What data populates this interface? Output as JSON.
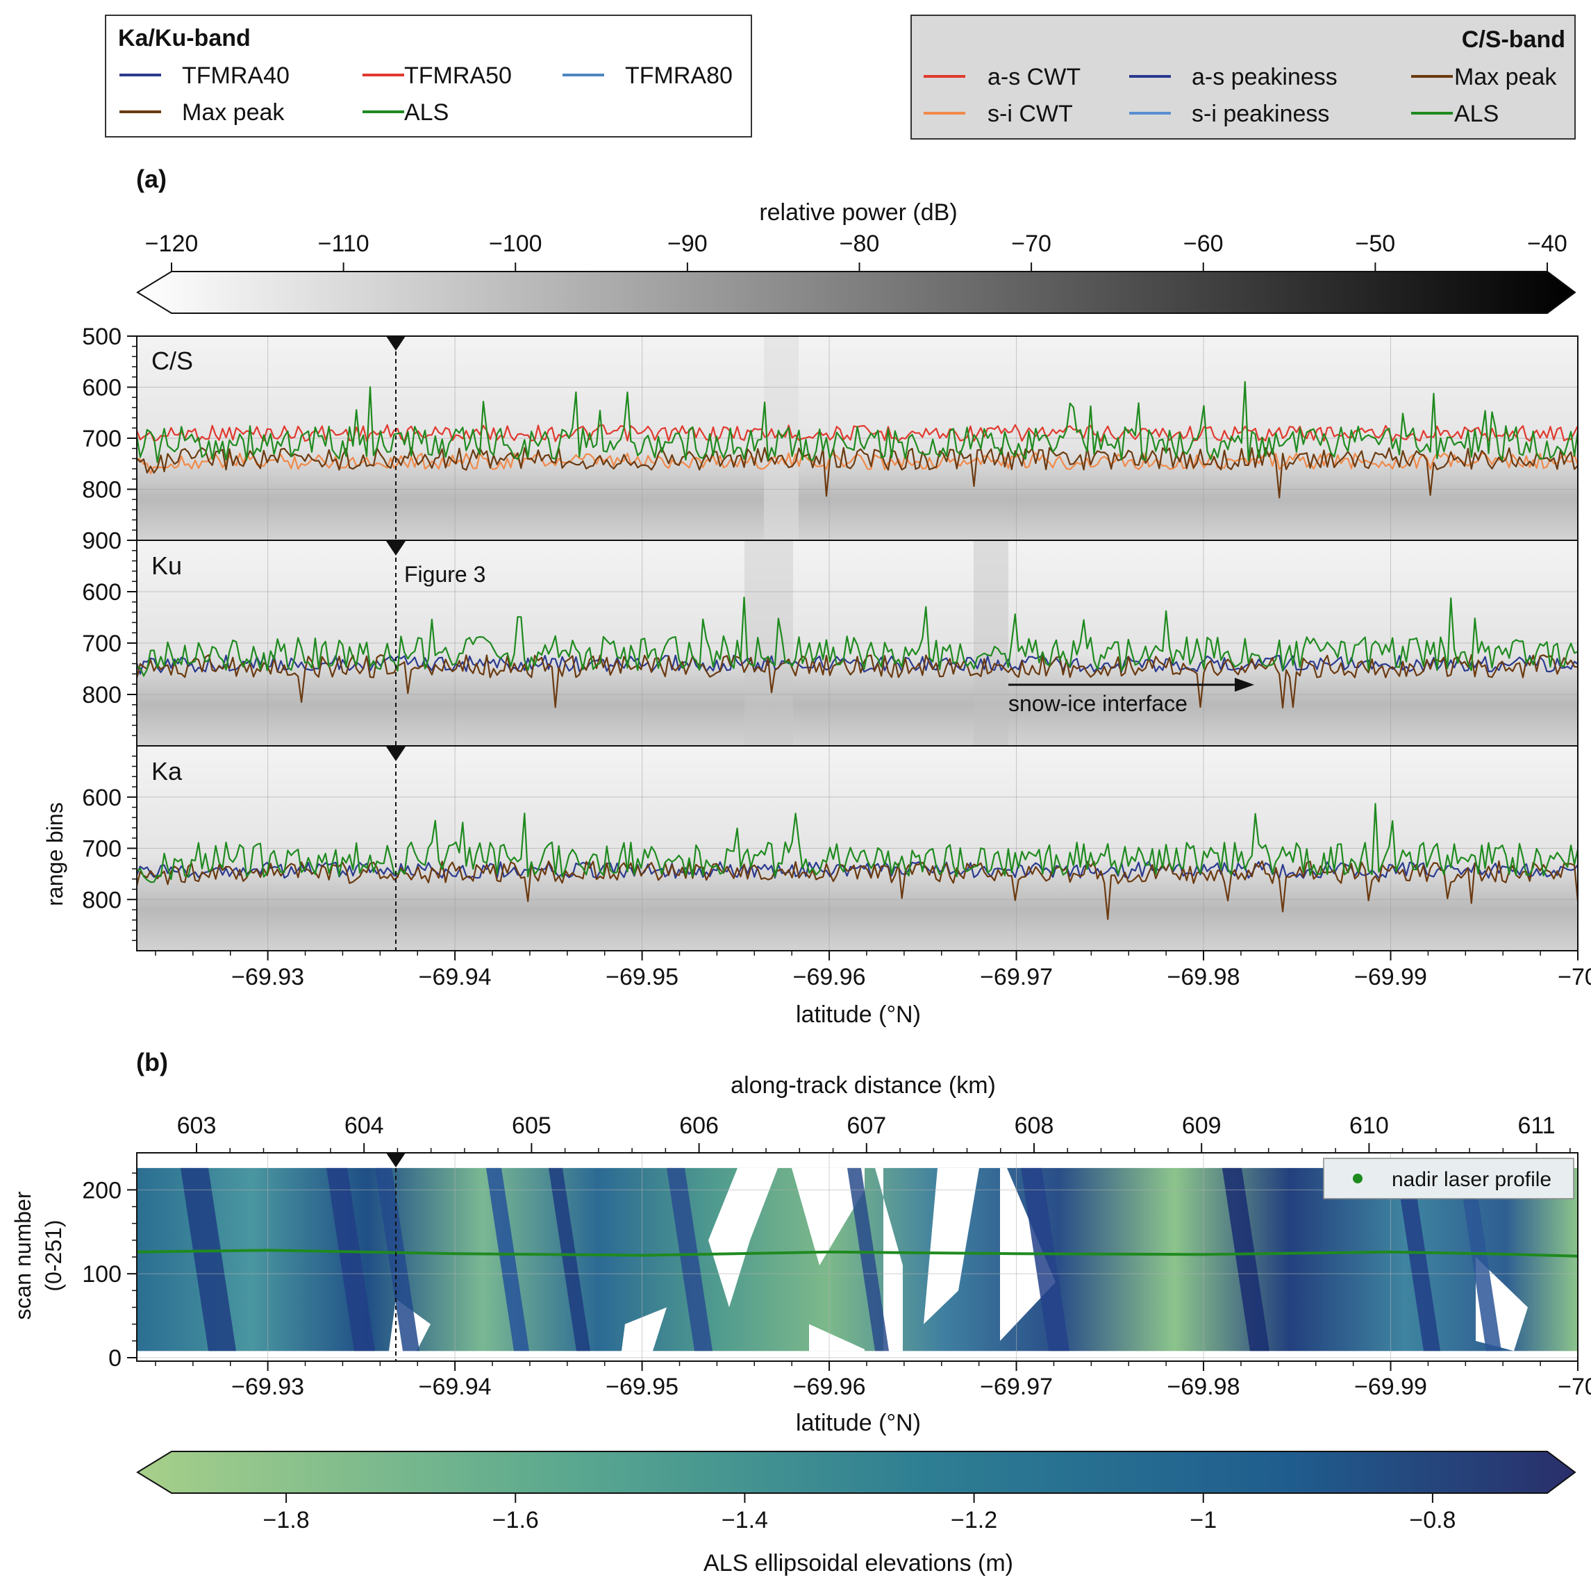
{
  "legend_kaku": {
    "title": "Ka/Ku-band",
    "items": [
      {
        "label": "TFMRA40",
        "color": "#2b3a8f"
      },
      {
        "label": "TFMRA50",
        "color": "#e03a2f"
      },
      {
        "label": "TFMRA80",
        "color": "#4f86c0"
      },
      {
        "label": "Max peak",
        "color": "#6b3a10"
      },
      {
        "label": "ALS",
        "color": "#1f8a1f"
      }
    ]
  },
  "legend_cs": {
    "title": "C/S-band",
    "items": [
      {
        "label": "a-s CWT",
        "color": "#e03a2f"
      },
      {
        "label": "a-s peakiness",
        "color": "#2b3a8f"
      },
      {
        "label": "Max peak",
        "color": "#6b3a10"
      },
      {
        "label": "s-i CWT",
        "color": "#f08a4b"
      },
      {
        "label": "s-i peakiness",
        "color": "#5a8fd0"
      },
      {
        "label": "ALS",
        "color": "#1f8a1f"
      }
    ]
  },
  "panel_a": {
    "label": "(a)",
    "colorbar": {
      "label": "relative power (dB)",
      "ticks": [
        "−120",
        "−110",
        "−100",
        "−90",
        "−80",
        "−70",
        "−60",
        "−50",
        "−40"
      ],
      "range": [
        -120,
        -40
      ],
      "colormap": [
        "#ffffff",
        "#000000"
      ]
    },
    "subplots": [
      {
        "name": "C/S",
        "ytick_labels": [
          "500",
          "600",
          "700",
          "800",
          "900"
        ],
        "ylim": [
          900,
          500
        ]
      },
      {
        "name": "Ku",
        "ytick_labels": [
          "600",
          "700",
          "800"
        ],
        "ylim": [
          900,
          500
        ]
      },
      {
        "name": "Ka",
        "ytick_labels": [
          "600",
          "700",
          "800"
        ],
        "ylim": [
          900,
          500
        ]
      }
    ],
    "ylabel": "range bins",
    "xlabel": "latitude (°N)",
    "xtick_labels": [
      "−69.93",
      "−69.94",
      "−69.95",
      "−69.96",
      "−69.97",
      "−69.98",
      "−69.99",
      "−70"
    ],
    "marker_annotation": "Figure 3",
    "interface_annotation": "snow-ice interface"
  },
  "panel_b": {
    "label": "(b)",
    "top_xlabel": "along-track distance (km)",
    "top_xtick_labels": [
      "603",
      "604",
      "605",
      "606",
      "607",
      "608",
      "609",
      "610",
      "611"
    ],
    "ylabel_line1": "scan number",
    "ylabel_line2": "(0-251)",
    "ytick_labels": [
      "0",
      "100",
      "200"
    ],
    "xlabel": "latitude (°N)",
    "xtick_labels": [
      "−69.93",
      "−69.94",
      "−69.95",
      "−69.96",
      "−69.97",
      "−69.98",
      "−69.99",
      "−70"
    ],
    "legend_label": "nadir laser profile",
    "legend_color": "#1f8a1f",
    "colorbar": {
      "label": "ALS ellipsoidal elevations (m)",
      "ticks": [
        "−1.8",
        "−1.6",
        "−1.4",
        "−1.2",
        "−1",
        "−0.8"
      ],
      "range": [
        -1.9,
        -0.7
      ],
      "colormap": [
        "#a7d08a",
        "#5aa88f",
        "#2e7e93",
        "#1f5d8e",
        "#2a2f6b"
      ]
    }
  },
  "chart_data": [
    {
      "type": "line",
      "title": "C/S",
      "xlabel": "latitude (°N)",
      "ylabel": "range bins",
      "xlim": [
        -69.923,
        -70.0
      ],
      "ylim": [
        900,
        500
      ],
      "series": [
        {
          "name": "a-s CWT",
          "x": [
            -69.925,
            -69.93,
            -69.935,
            -69.94,
            -69.945,
            -69.95,
            -69.955,
            -69.96,
            -69.965,
            -69.97,
            -69.975,
            -69.98,
            -69.985,
            -69.99,
            -69.995,
            -70.0
          ],
          "values": [
            690,
            665,
            675,
            670,
            680,
            690,
            690,
            735,
            670,
            735,
            690,
            665,
            690,
            680,
            675,
            695
          ]
        },
        {
          "name": "s-i CWT",
          "x": [
            -69.925,
            -69.93,
            -69.935,
            -69.94,
            -69.945,
            -69.95,
            -69.955,
            -69.96,
            -69.965,
            -69.97,
            -69.975,
            -69.98,
            -69.985,
            -69.99,
            -69.995,
            -70.0
          ],
          "values": [
            745,
            735,
            740,
            745,
            740,
            740,
            745,
            760,
            745,
            760,
            745,
            735,
            745,
            740,
            740,
            755
          ]
        },
        {
          "name": "Max peak",
          "x": [
            -69.925,
            -69.93,
            -69.935,
            -69.94,
            -69.945,
            -69.95,
            -69.955,
            -69.96,
            -69.965,
            -69.97,
            -69.975,
            -69.98,
            -69.985,
            -69.99,
            -69.995,
            -70.0
          ],
          "values": [
            740,
            725,
            730,
            745,
            735,
            735,
            740,
            750,
            735,
            752,
            735,
            725,
            740,
            735,
            730,
            750
          ]
        },
        {
          "name": "ALS",
          "x": [
            -69.925,
            -69.93,
            -69.935,
            -69.94,
            -69.945,
            -69.95,
            -69.955,
            -69.96,
            -69.965,
            -69.97,
            -69.975,
            -69.98,
            -69.985,
            -69.99,
            -69.995,
            -70.0
          ],
          "values": [
            710,
            680,
            690,
            700,
            705,
            710,
            715,
            750,
            700,
            750,
            710,
            690,
            710,
            705,
            700,
            715
          ]
        }
      ]
    },
    {
      "type": "line",
      "title": "Ku",
      "xlabel": "latitude (°N)",
      "ylabel": "range bins",
      "xlim": [
        -69.923,
        -70.0
      ],
      "ylim": [
        900,
        500
      ],
      "series": [
        {
          "name": "TFMRA40",
          "x": [
            -69.925,
            -69.93,
            -69.935,
            -69.94,
            -69.945,
            -69.95,
            -69.955,
            -69.96,
            -69.965,
            -69.97,
            -69.975,
            -69.98,
            -69.985,
            -69.99,
            -69.995,
            -70.0
          ],
          "values": [
            740,
            715,
            725,
            745,
            730,
            725,
            750,
            760,
            720,
            760,
            730,
            690,
            725,
            720,
            710,
            745
          ]
        },
        {
          "name": "Max peak",
          "x": [
            -69.925,
            -69.93,
            -69.935,
            -69.94,
            -69.945,
            -69.95,
            -69.955,
            -69.96,
            -69.965,
            -69.97,
            -69.975,
            -69.98,
            -69.985,
            -69.99,
            -69.995,
            -70.0
          ],
          "values": [
            745,
            720,
            730,
            750,
            735,
            730,
            755,
            762,
            725,
            762,
            735,
            695,
            730,
            725,
            715,
            750
          ]
        },
        {
          "name": "ALS",
          "x": [
            -69.925,
            -69.93,
            -69.935,
            -69.94,
            -69.945,
            -69.95,
            -69.955,
            -69.96,
            -69.965,
            -69.97,
            -69.975,
            -69.98,
            -69.985,
            -69.99,
            -69.995,
            -70.0
          ],
          "values": [
            720,
            690,
            700,
            720,
            710,
            710,
            730,
            760,
            705,
            760,
            715,
            680,
            715,
            710,
            695,
            730
          ]
        }
      ]
    },
    {
      "type": "line",
      "title": "Ka",
      "xlabel": "latitude (°N)",
      "ylabel": "range bins",
      "xlim": [
        -69.923,
        -70.0
      ],
      "ylim": [
        900,
        500
      ],
      "series": [
        {
          "name": "TFMRA40",
          "x": [
            -69.925,
            -69.93,
            -69.935,
            -69.94,
            -69.945,
            -69.95,
            -69.955,
            -69.96,
            -69.965,
            -69.97,
            -69.975,
            -69.98,
            -69.985,
            -69.99,
            -69.995,
            -70.0
          ],
          "values": [
            742,
            718,
            728,
            748,
            732,
            728,
            752,
            762,
            722,
            762,
            732,
            692,
            727,
            722,
            712,
            748
          ]
        },
        {
          "name": "Max peak",
          "x": [
            -69.925,
            -69.93,
            -69.935,
            -69.94,
            -69.945,
            -69.95,
            -69.955,
            -69.96,
            -69.965,
            -69.97,
            -69.975,
            -69.98,
            -69.985,
            -69.99,
            -69.995,
            -70.0
          ],
          "values": [
            747,
            722,
            732,
            752,
            737,
            732,
            757,
            763,
            727,
            764,
            737,
            697,
            732,
            727,
            717,
            752
          ]
        },
        {
          "name": "ALS",
          "x": [
            -69.925,
            -69.93,
            -69.935,
            -69.94,
            -69.945,
            -69.95,
            -69.955,
            -69.96,
            -69.965,
            -69.97,
            -69.975,
            -69.98,
            -69.985,
            -69.99,
            -69.995,
            -70.0
          ],
          "values": [
            722,
            692,
            702,
            722,
            712,
            712,
            732,
            762,
            707,
            762,
            717,
            682,
            717,
            712,
            697,
            732
          ]
        }
      ]
    },
    {
      "type": "heatmap",
      "title": "",
      "xlabel": "latitude (°N)",
      "ylabel": "scan number (0-251)",
      "xlim": [
        -69.923,
        -70.0
      ],
      "ylim": [
        0,
        251
      ],
      "series": [
        {
          "name": "nadir laser profile",
          "x": [
            -69.923,
            -69.93,
            -69.94,
            -69.95,
            -69.96,
            -69.97,
            -69.98,
            -69.99,
            -69.995,
            -70.0
          ],
          "values": [
            126,
            128,
            124,
            122,
            126,
            124,
            123,
            126,
            124,
            121
          ]
        }
      ]
    }
  ]
}
